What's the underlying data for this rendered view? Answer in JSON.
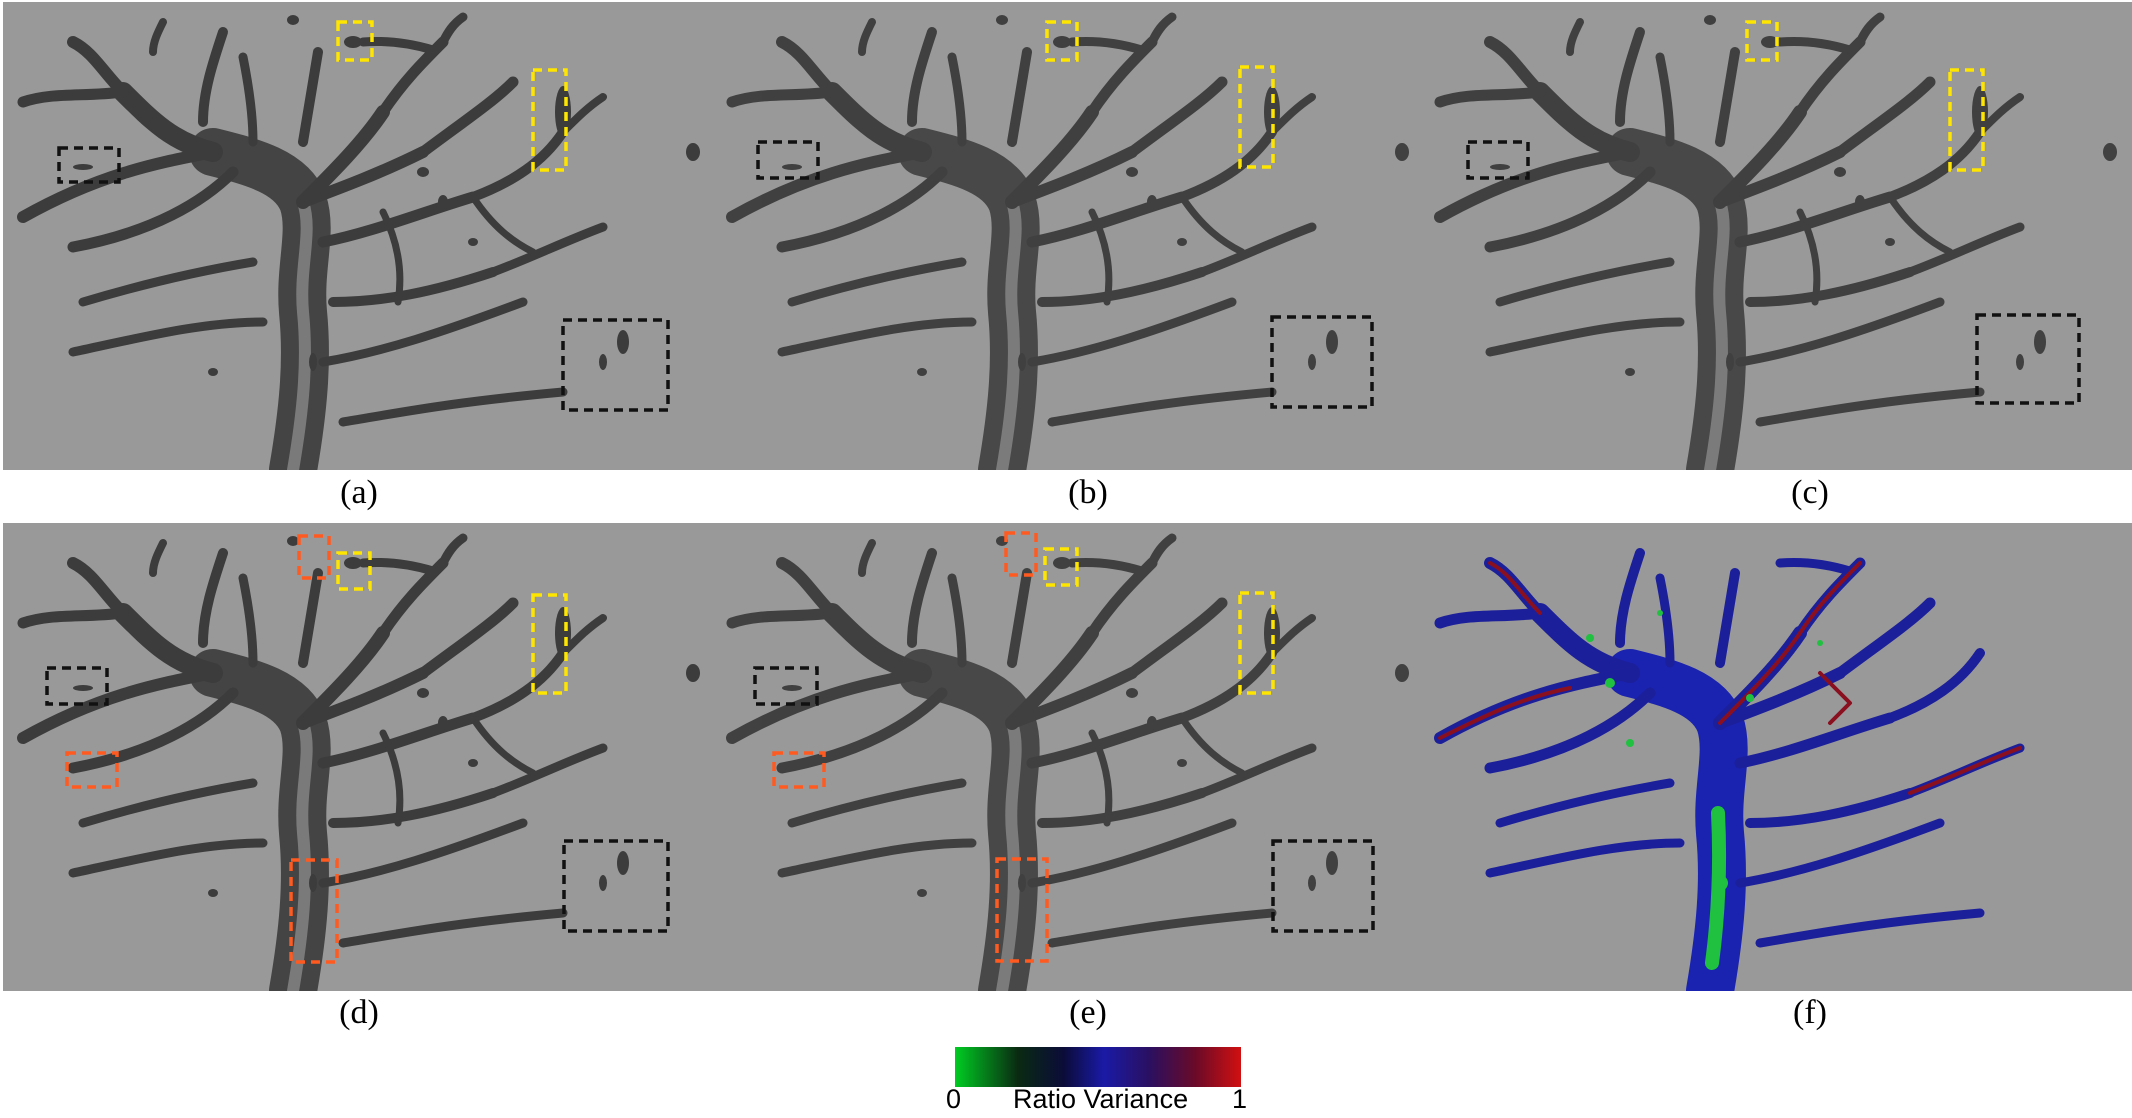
{
  "panels": [
    {
      "id": "a",
      "caption": "(a)",
      "shading": "smooth"
    },
    {
      "id": "b",
      "caption": "(b)",
      "shading": "voxel"
    },
    {
      "id": "c",
      "caption": "(c)",
      "shading": "voxel"
    },
    {
      "id": "d",
      "caption": "(d)",
      "shading": "smooth"
    },
    {
      "id": "e",
      "caption": "(e)",
      "shading": "voxel"
    },
    {
      "id": "f",
      "caption": "(f)",
      "shading": "colormap"
    }
  ],
  "colors": {
    "background": "#999999",
    "vessel_dark": "#3a3a3a",
    "highlight_yellow": "#ffe600",
    "highlight_orange": "#ff5a1f",
    "highlight_black": "#111111",
    "colormap_low": "#00cc22",
    "colormap_mid": "#1a1aa6",
    "colormap_high": "#d01010"
  },
  "colorbar": {
    "min_label": "0",
    "max_label": "1",
    "title": "Ratio Variance"
  }
}
